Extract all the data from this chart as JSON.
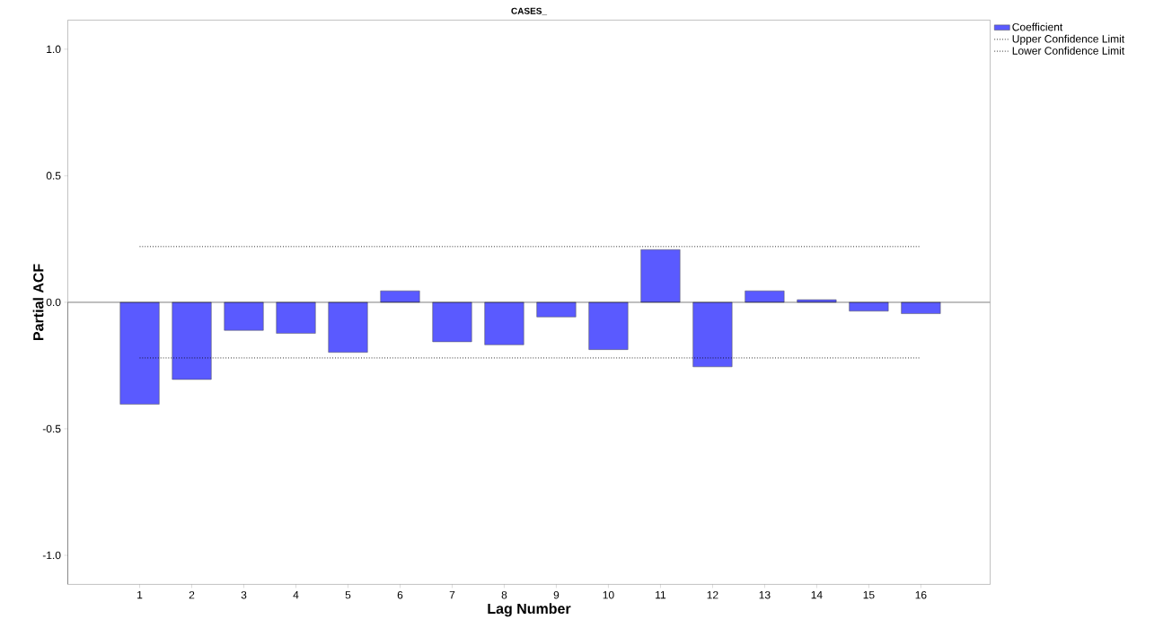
{
  "chart_data": {
    "type": "bar",
    "title": "CASES_",
    "xlabel": "Lag Number",
    "ylabel": "Partial ACF",
    "categories": [
      "1",
      "2",
      "3",
      "4",
      "5",
      "6",
      "7",
      "8",
      "9",
      "10",
      "11",
      "12",
      "13",
      "14",
      "15",
      "16"
    ],
    "series": [
      {
        "name": "Coefficient",
        "color": "#5a5aff",
        "values": [
          -0.403,
          -0.305,
          -0.111,
          -0.123,
          -0.198,
          0.045,
          -0.156,
          -0.168,
          -0.058,
          -0.187,
          0.208,
          -0.255,
          0.045,
          0.01,
          -0.035,
          -0.045
        ]
      }
    ],
    "ylim": [
      -1.115,
      1.115
    ],
    "yticks": [
      {
        "value": -1,
        "label": "-1.0"
      },
      -0.5,
      {
        "value": 0,
        "label": "0.0"
      },
      0.5,
      {
        "value": 1,
        "label": "1.0"
      }
    ],
    "ref_lines": [
      {
        "axis": "y",
        "value": 0.22,
        "label": "Upper Confidence Limit",
        "color": "#000000",
        "line_style": "dotted"
      },
      {
        "axis": "y",
        "value": -0.22,
        "label": "Lower Confidence Limit",
        "color": "#000000",
        "line_style": "dotted"
      },
      {
        "axis": "y",
        "value": 0,
        "color": "#000000",
        "line_style": "solid"
      }
    ],
    "legend": "top right",
    "grid": false
  }
}
